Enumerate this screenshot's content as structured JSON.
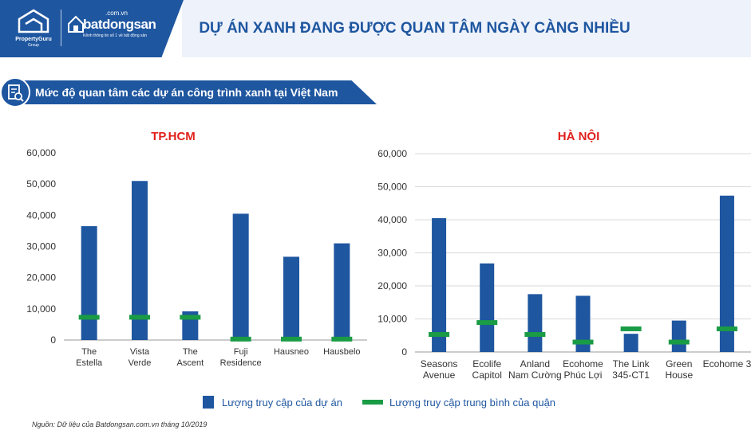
{
  "header": {
    "title": "DỰ ÁN XANH ĐANG ĐƯỢC QUAN TÂM NGÀY CÀNG NHIỀU",
    "logo_pg_name": "PropertyGuru",
    "logo_pg_sub": "Group",
    "logo_bds_domain": ".com.vn",
    "logo_bds_name": "batdongsan",
    "logo_bds_tagline": "Kênh thông tin số 1 về bất động sản"
  },
  "section": {
    "title": "Mức độ quan tâm các dự án công trình xanh tại Việt Nam",
    "icon": "document-search-icon"
  },
  "colors": {
    "brand_blue": "#1e56a0",
    "bar": "#1e56a0",
    "average": "#1a9b45",
    "title_red": "#e0201b"
  },
  "legend": {
    "bar_label": "Lượng truy cập của dự án",
    "line_label": "Lượng truy cập trung bình của quận"
  },
  "source": "Nguồn: Dữ liệu của Batdongsan.com.vn tháng 10/2019",
  "chart_data": [
    {
      "type": "bar",
      "title": "TP.HCM",
      "categories": [
        [
          "The",
          "Estella"
        ],
        [
          "Vista",
          "Verde"
        ],
        [
          "The",
          "Ascent"
        ],
        [
          "Fuji",
          "Residence"
        ],
        [
          "Hausneo"
        ],
        [
          "Hausbelo"
        ]
      ],
      "series": [
        {
          "name": "Lượng truy cập của dự án",
          "values": [
            36500,
            51000,
            9200,
            40500,
            26700,
            31000
          ]
        },
        {
          "name": "Lượng truy cập trung bình của quận",
          "values": [
            7300,
            7300,
            7300,
            300,
            300,
            300
          ]
        }
      ],
      "ylim": [
        0,
        60000
      ],
      "yticks": [
        "0",
        "10,000",
        "20,000",
        "30,000",
        "40,000",
        "50,000",
        "60,000"
      ],
      "grid": false
    },
    {
      "type": "bar",
      "title": "HÀ NỘI",
      "categories": [
        [
          "Seasons",
          "Avenue"
        ],
        [
          "Ecolife",
          "Capitol"
        ],
        [
          "Anland",
          "Nam Cường"
        ],
        [
          "Ecohome",
          "Phúc Lợi"
        ],
        [
          "The Link",
          "345-CT1"
        ],
        [
          "Green",
          "House"
        ],
        [
          "Ecohome 3"
        ]
      ],
      "series": [
        {
          "name": "Lượng truy cập của dự án",
          "values": [
            40500,
            26800,
            17500,
            17000,
            5500,
            9500,
            47300
          ]
        },
        {
          "name": "Lượng truy cập trung bình của quận",
          "values": [
            5300,
            8900,
            5300,
            3000,
            7000,
            3000,
            7000
          ]
        }
      ],
      "ylim": [
        0,
        60000
      ],
      "yticks": [
        "0",
        "10,000",
        "20,000",
        "30,000",
        "40,000",
        "50,000",
        "60,000"
      ],
      "grid": true
    }
  ]
}
